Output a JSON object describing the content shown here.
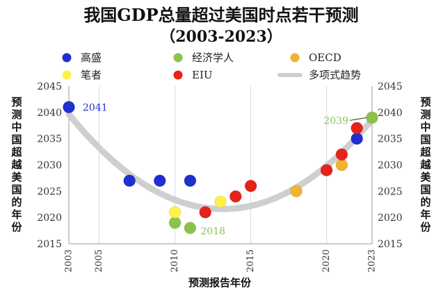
{
  "chart_data": {
    "type": "scatter",
    "title": "我国GDP总量超过美国时点若干预测",
    "subtitle": "（2003-2023）",
    "xlabel": "预测报告年份",
    "ylabel": "预测中国超越美国的年份",
    "ylabel_right": "预测中国超越美国的年份",
    "xlim": [
      2003,
      2023
    ],
    "ylim": [
      2015,
      2045
    ],
    "x_ticks": [
      "2003",
      "2005",
      "2010",
      "2015",
      "2020",
      "2023"
    ],
    "y_ticks": [
      "2015",
      "2020",
      "2025",
      "2030",
      "2035",
      "2040",
      "2045"
    ],
    "grid": "vertical",
    "legend_position": "top",
    "series": [
      {
        "name": "高盛",
        "color": "#1f2fd0",
        "points": [
          [
            2003,
            2041
          ],
          [
            2007,
            2027
          ],
          [
            2009,
            2027
          ],
          [
            2011,
            2027
          ],
          [
            2022,
            2035
          ]
        ]
      },
      {
        "name": "经济学人",
        "color": "#8bc34a",
        "points": [
          [
            2010,
            2019
          ],
          [
            2011,
            2018
          ],
          [
            2023,
            2039
          ]
        ]
      },
      {
        "name": "OECD",
        "color": "#f2b233",
        "points": [
          [
            2018,
            2025
          ],
          [
            2021,
            2030
          ]
        ]
      },
      {
        "name": "笔者",
        "color": "#fff04a",
        "points": [
          [
            2010,
            2021
          ],
          [
            2013,
            2023
          ]
        ]
      },
      {
        "name": "EIU",
        "color": "#e5231b",
        "points": [
          [
            2012,
            2021
          ],
          [
            2014,
            2024
          ],
          [
            2015,
            2026
          ],
          [
            2020,
            2029
          ],
          [
            2021,
            2032
          ],
          [
            2022,
            2037
          ]
        ]
      }
    ],
    "trendline": {
      "name": "多项式趋势",
      "color": "#cfcfcf"
    },
    "annotations": [
      {
        "text": "2041",
        "color": "#1f2fd0",
        "x": 2003,
        "y": 2041
      },
      {
        "text": "2018",
        "color": "#8bc34a",
        "x": 2011,
        "y": 2018
      },
      {
        "text": "2039",
        "color": "#8bc34a",
        "x": 2023,
        "y": 2039
      }
    ]
  }
}
